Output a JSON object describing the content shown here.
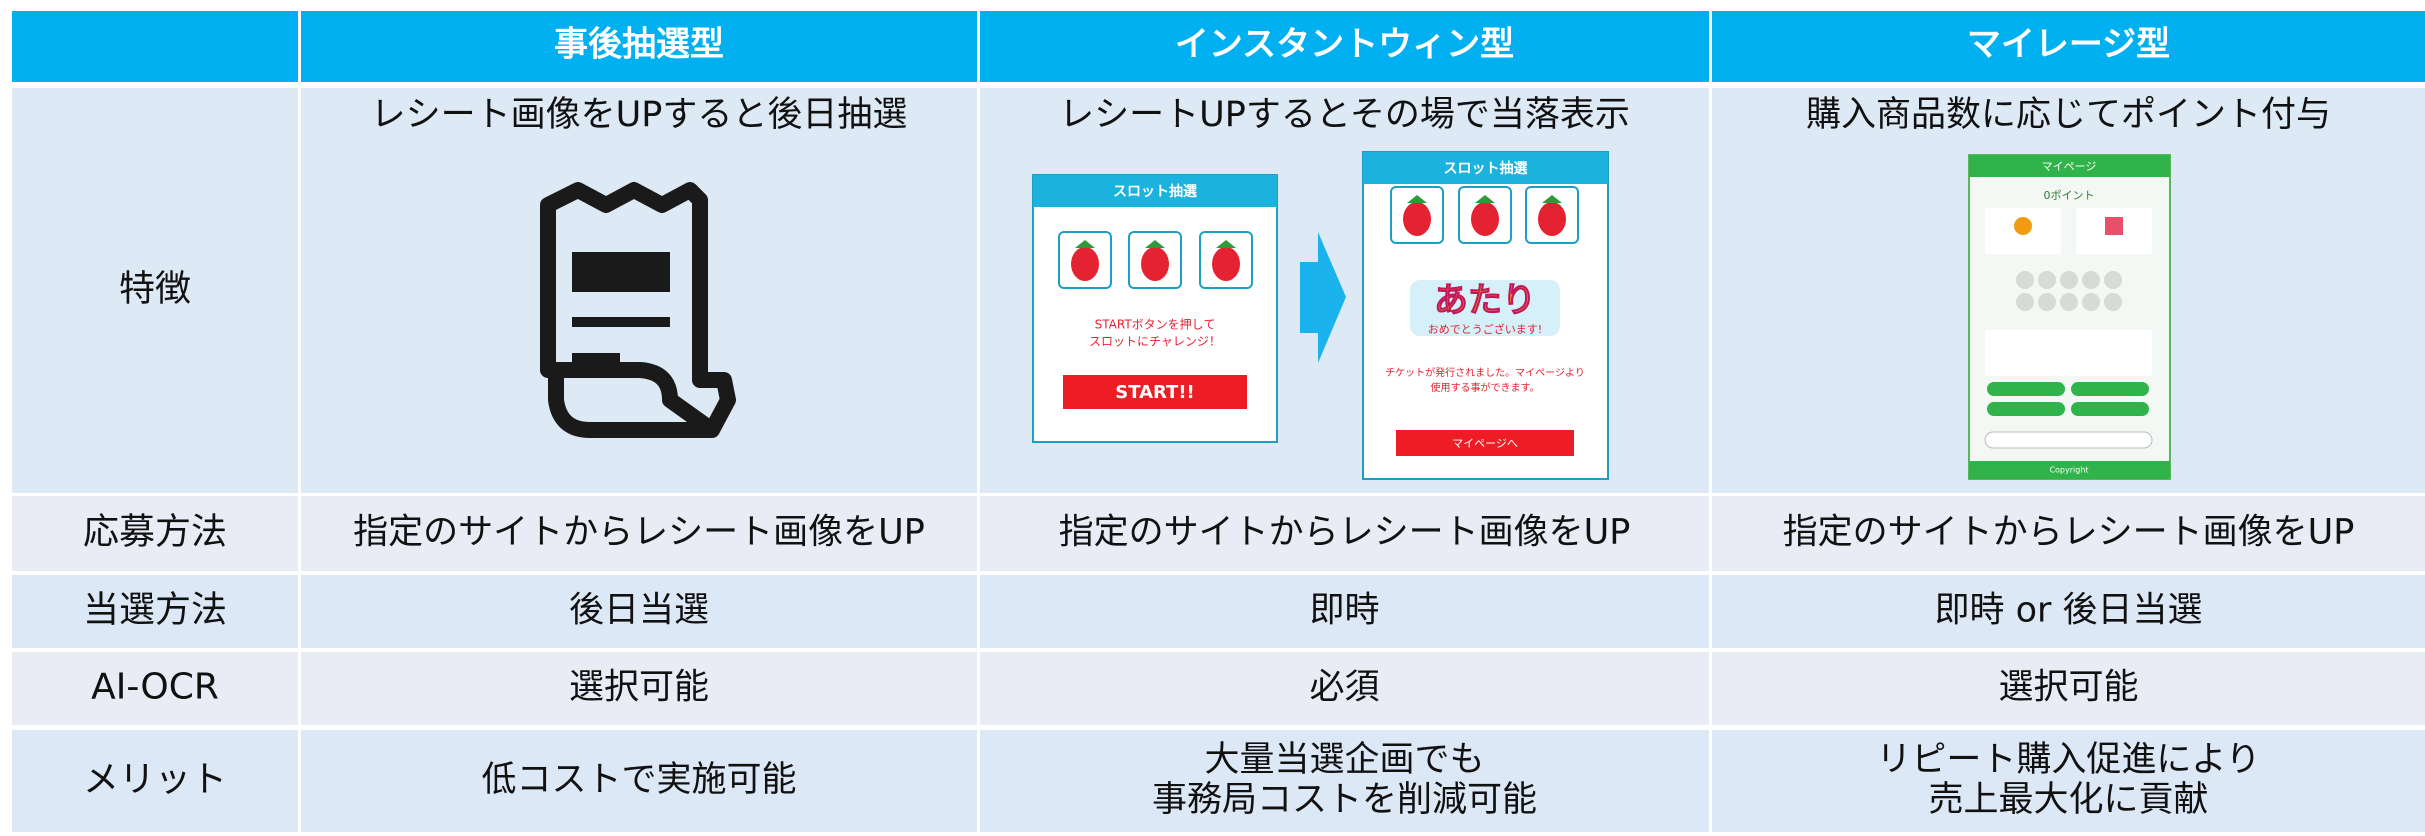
{
  "table": {
    "columns": [
      "事後抽選型",
      "インスタントウィン型",
      "マイレージ型"
    ],
    "rows": [
      {
        "label": "特徴",
        "cells": [
          [
            "レシート画像をUPすると後日抽選"
          ],
          [
            "レシートUPするとその場で当落表示"
          ],
          [
            "購入商品数に応じてポイント付与"
          ]
        ]
      },
      {
        "label": "応募方法",
        "cells": [
          [
            "指定のサイトからレシート画像をUP"
          ],
          [
            "指定のサイトからレシート画像をUP"
          ],
          [
            "指定のサイトからレシート画像をUP"
          ]
        ]
      },
      {
        "label": "当選方法",
        "cells": [
          [
            "後日当選"
          ],
          [
            "即時"
          ],
          [
            "即時 or 後日当選"
          ]
        ]
      },
      {
        "label": "AI-OCR",
        "cells": [
          [
            "選択可能"
          ],
          [
            "必須"
          ],
          [
            "選択可能"
          ]
        ]
      },
      {
        "label": "メリット",
        "cells": [
          [
            "低コストで実施可能"
          ],
          [
            "大量当選企画でも",
            "事務局コストを削減可能"
          ],
          [
            "リピート購入促進により",
            "売上最大化に貢献"
          ]
        ]
      }
    ]
  },
  "mockups": {
    "slot": {
      "title": "スロット抽選",
      "message": [
        "STARTボタンを押して",
        "スロットにチャレンジ！"
      ],
      "button": "START!!"
    },
    "result": {
      "title": "スロット抽選",
      "win": "あたり",
      "win_sub": "おめでとうございます!",
      "message": [
        "チケットが発行されました。マイページより",
        "使用する事ができます。"
      ],
      "button": "マイページへ"
    },
    "mileage": {
      "title": "マイページ",
      "points": "0ポイント",
      "footer": "Copyright"
    }
  }
}
